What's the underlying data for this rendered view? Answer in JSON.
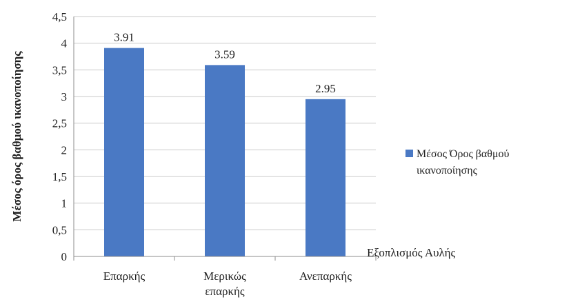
{
  "chart_data": {
    "type": "bar",
    "categories": [
      [
        "Επαρκής"
      ],
      [
        "Μερικώς",
        "επαρκής"
      ],
      [
        "Ανεπαρκής"
      ]
    ],
    "series": [
      {
        "name": "Μέσος Όρος βαθμού ικανοποίησης",
        "values": [
          3.91,
          3.59,
          2.95
        ],
        "data_labels": [
          "3.91",
          "3.59",
          "2.95"
        ],
        "color": "#4a79c4"
      }
    ],
    "ylabel": "Μέσος όρος βαθμού ικανοποίησης",
    "xlabel": "Εξοπλισμός Αυλής",
    "ylim": [
      0,
      4.5
    ],
    "yticks": [
      0,
      0.5,
      1,
      1.5,
      2,
      2.5,
      3,
      3.5,
      4,
      4.5
    ],
    "ytick_labels": [
      "0",
      "0,5",
      "1",
      "1,5",
      "2",
      "2,5",
      "3",
      "3,5",
      "4",
      "4,5"
    ],
    "grid": true,
    "legend": {
      "position": "right",
      "lines": [
        "Μέσος Όρος βαθμού",
        "ικανοποίησης"
      ]
    }
  }
}
